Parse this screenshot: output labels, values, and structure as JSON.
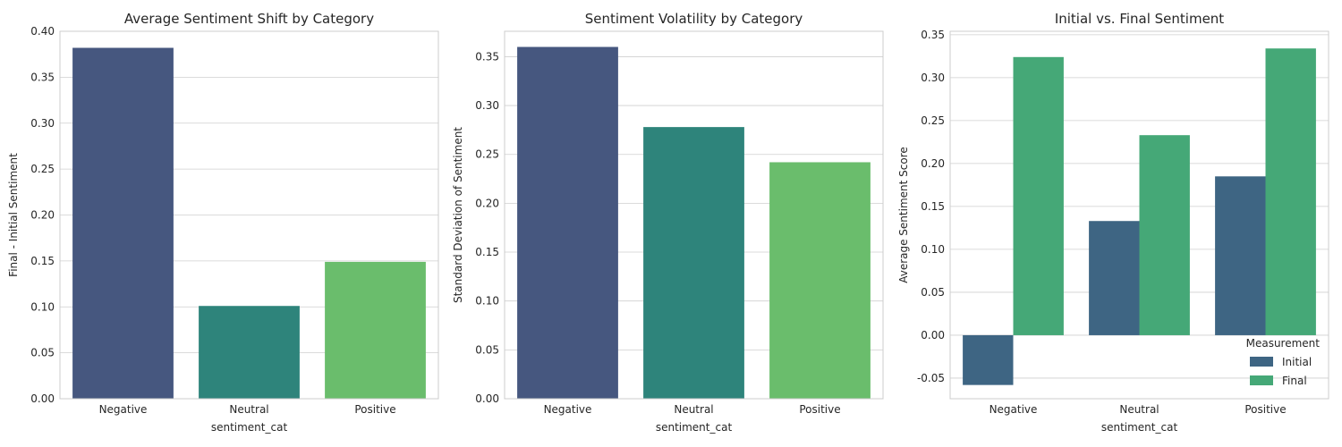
{
  "chart_data": [
    {
      "type": "bar",
      "title": "Average Sentiment Shift by Category",
      "xlabel": "sentiment_cat",
      "ylabel": "Final - Initial Sentiment",
      "categories": [
        "Negative",
        "Neutral",
        "Positive"
      ],
      "values": [
        0.382,
        0.101,
        0.149
      ],
      "colors": [
        "#46577f",
        "#2e847b",
        "#6abd6c"
      ],
      "ylim": [
        0,
        0.4
      ],
      "yticks": [
        0.0,
        0.05,
        0.1,
        0.15,
        0.2,
        0.25,
        0.3,
        0.35,
        0.4
      ],
      "grid": true
    },
    {
      "type": "bar",
      "title": "Sentiment Volatility by Category",
      "xlabel": "sentiment_cat",
      "ylabel": "Standard Deviation of Sentiment",
      "categories": [
        "Negative",
        "Neutral",
        "Positive"
      ],
      "values": [
        0.36,
        0.278,
        0.242
      ],
      "colors": [
        "#46577f",
        "#2e847b",
        "#6abd6c"
      ],
      "ylim": [
        0,
        0.376
      ],
      "yticks": [
        0.0,
        0.05,
        0.1,
        0.15,
        0.2,
        0.25,
        0.3,
        0.35
      ],
      "grid": true
    },
    {
      "type": "bar",
      "title": "Initial vs. Final Sentiment",
      "xlabel": "sentiment_cat",
      "ylabel": "Average Sentiment Score",
      "categories": [
        "Negative",
        "Neutral",
        "Positive"
      ],
      "series": [
        {
          "name": "Initial",
          "values": [
            -0.058,
            0.133,
            0.185
          ],
          "color": "#3e6583"
        },
        {
          "name": "Final",
          "values": [
            0.324,
            0.233,
            0.334
          ],
          "color": "#45a877"
        }
      ],
      "legend_title": "Measurement",
      "legend_position": "lower-right",
      "ylim": [
        -0.074,
        0.354
      ],
      "yticks": [
        -0.05,
        0.0,
        0.05,
        0.1,
        0.15,
        0.2,
        0.25,
        0.3,
        0.35
      ],
      "grid": true
    }
  ]
}
